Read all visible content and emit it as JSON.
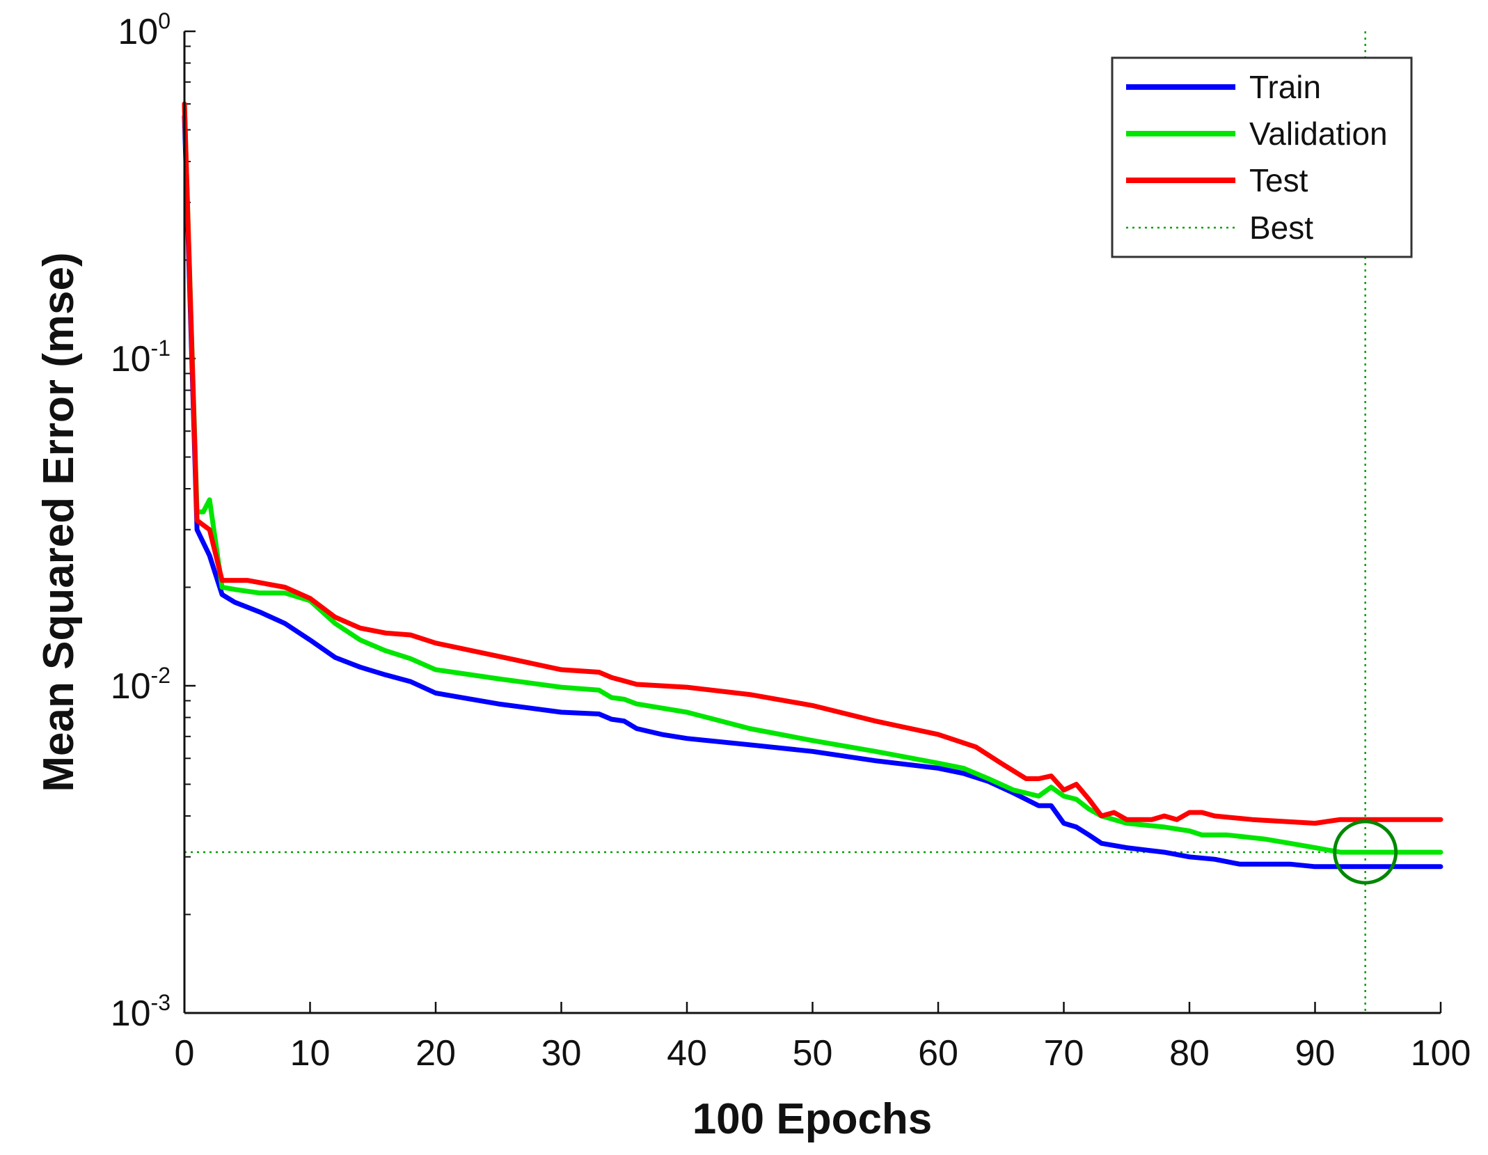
{
  "chart_data": {
    "type": "line",
    "title": "",
    "xlabel": "100 Epochs",
    "ylabel": "Mean Squared Error  (mse)",
    "xscale": "linear",
    "yscale": "log",
    "xlim": [
      0,
      100
    ],
    "ylim": [
      0.001,
      1
    ],
    "xticks": [
      0,
      10,
      20,
      30,
      40,
      50,
      60,
      70,
      80,
      90,
      100
    ],
    "yticks": [
      {
        "value": 1,
        "base": "10",
        "exp": "0"
      },
      {
        "value": 0.1,
        "base": "10",
        "exp": "-1"
      },
      {
        "value": 0.01,
        "base": "10",
        "exp": "-2"
      },
      {
        "value": 0.001,
        "base": "10",
        "exp": "-3"
      }
    ],
    "legend_position": "top-right",
    "series": [
      {
        "name": "Train",
        "color": "#0000ff",
        "style": "solid",
        "x": [
          0,
          1,
          2,
          3,
          4,
          6,
          8,
          10,
          12,
          14,
          16,
          18,
          20,
          25,
          30,
          33,
          34,
          35,
          36,
          38,
          40,
          45,
          50,
          55,
          60,
          62,
          64,
          66,
          68,
          69,
          70,
          71,
          72,
          73,
          75,
          78,
          80,
          82,
          84,
          86,
          88,
          90,
          92,
          94,
          96,
          98,
          100
        ],
        "y": [
          0.55,
          0.03,
          0.025,
          0.019,
          0.018,
          0.0168,
          0.0155,
          0.0138,
          0.0122,
          0.0114,
          0.0108,
          0.0103,
          0.0095,
          0.0088,
          0.0083,
          0.0082,
          0.0079,
          0.0078,
          0.0074,
          0.0071,
          0.0069,
          0.0066,
          0.0063,
          0.0059,
          0.0056,
          0.0054,
          0.0051,
          0.0047,
          0.0043,
          0.0043,
          0.0038,
          0.0037,
          0.0035,
          0.0033,
          0.0032,
          0.0031,
          0.003,
          0.00295,
          0.00285,
          0.00285,
          0.00285,
          0.0028,
          0.0028,
          0.0028,
          0.0028,
          0.0028,
          0.0028
        ]
      },
      {
        "name": "Validation",
        "color": "#00e600",
        "style": "solid",
        "x": [
          0,
          1,
          1.5,
          2,
          3,
          4,
          6,
          8,
          10,
          12,
          14,
          16,
          18,
          20,
          25,
          30,
          33,
          34,
          35,
          36,
          40,
          45,
          50,
          55,
          60,
          62,
          64,
          66,
          68,
          69,
          70,
          71,
          72,
          73,
          75,
          78,
          80,
          81,
          83,
          86,
          88,
          90,
          92,
          94,
          96,
          98,
          100
        ],
        "y": [
          0.6,
          0.034,
          0.034,
          0.037,
          0.02,
          0.0197,
          0.0192,
          0.0192,
          0.0182,
          0.0155,
          0.0138,
          0.0128,
          0.0121,
          0.0112,
          0.0105,
          0.0099,
          0.0097,
          0.0092,
          0.0091,
          0.0088,
          0.0083,
          0.0074,
          0.0068,
          0.0063,
          0.0058,
          0.0056,
          0.0052,
          0.0048,
          0.0046,
          0.0049,
          0.0046,
          0.0045,
          0.0042,
          0.004,
          0.0038,
          0.0037,
          0.0036,
          0.0035,
          0.0035,
          0.0034,
          0.0033,
          0.0032,
          0.0031,
          0.0031,
          0.0031,
          0.0031,
          0.0031
        ]
      },
      {
        "name": "Test",
        "color": "#ff0000",
        "style": "solid",
        "x": [
          0,
          1,
          2,
          3,
          5,
          8,
          10,
          12,
          14,
          16,
          18,
          20,
          25,
          30,
          33,
          34,
          36,
          40,
          45,
          50,
          55,
          60,
          63,
          65,
          67,
          68,
          69,
          70,
          71,
          72,
          73,
          74,
          75,
          77,
          78,
          79,
          80,
          81,
          82,
          85,
          90,
          92,
          95,
          100
        ],
        "y": [
          0.6,
          0.032,
          0.03,
          0.021,
          0.021,
          0.02,
          0.0185,
          0.0162,
          0.015,
          0.0145,
          0.0143,
          0.0135,
          0.0123,
          0.0112,
          0.011,
          0.0106,
          0.0101,
          0.0099,
          0.0094,
          0.0087,
          0.0078,
          0.0071,
          0.0065,
          0.0058,
          0.0052,
          0.0052,
          0.0053,
          0.0048,
          0.005,
          0.0045,
          0.004,
          0.0041,
          0.0039,
          0.0039,
          0.004,
          0.0039,
          0.0041,
          0.0041,
          0.004,
          0.0039,
          0.0038,
          0.0039,
          0.0039,
          0.0039
        ]
      }
    ],
    "best": {
      "label": "Best",
      "epoch": 94,
      "value": 0.0031,
      "color": "#00a000",
      "style": "dotted"
    }
  }
}
